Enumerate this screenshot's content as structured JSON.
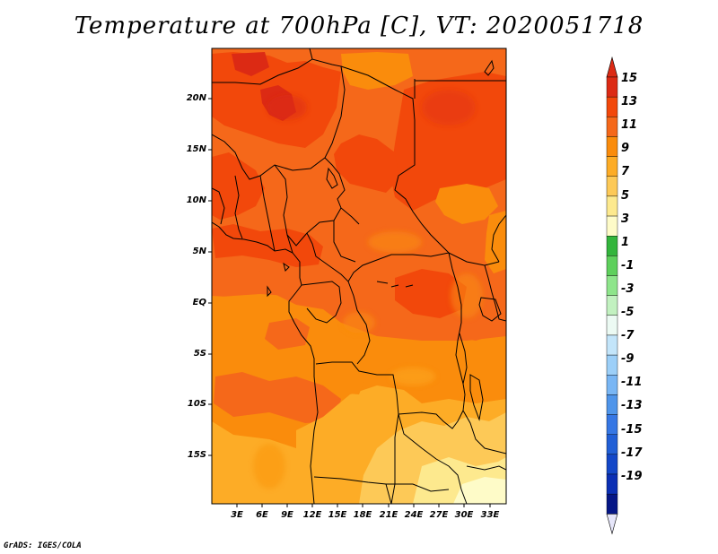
{
  "title": "Temperature at 700hPa [C], VT: 2020051718",
  "credit": "GrADS: IGES/COLA",
  "map": {
    "lat_ticks": [
      "20N",
      "15N",
      "10N",
      "5N",
      "EQ",
      "5S",
      "10S",
      "15S"
    ],
    "lon_ticks": [
      "3E",
      "6E",
      "9E",
      "12E",
      "15E",
      "18E",
      "21E",
      "24E",
      "27E",
      "30E",
      "33E"
    ]
  },
  "colorbar": {
    "labels": [
      "15",
      "13",
      "11",
      "9",
      "7",
      "5",
      "3",
      "1",
      "-1",
      "-3",
      "-5",
      "-7",
      "-9",
      "-11",
      "-13",
      "-15",
      "-17",
      "-19"
    ],
    "colors": [
      "#dc2a14",
      "#f2480b",
      "#f5681a",
      "#fa8c0c",
      "#fdac26",
      "#fdc957",
      "#fde98e",
      "#fefbc8",
      "#33b53c",
      "#5ed05c",
      "#8ee58b",
      "#c2f1c0",
      "#ecfaf3",
      "#c3e5fa",
      "#9ccff8",
      "#79b6f4",
      "#4f95ea",
      "#3677e4",
      "#215fd6",
      "#1347c8",
      "#0b2fb4",
      "#051686"
    ],
    "top_arrow_color": "#dc2a14",
    "bottom_arrow_color": "#e6e6fa"
  }
}
